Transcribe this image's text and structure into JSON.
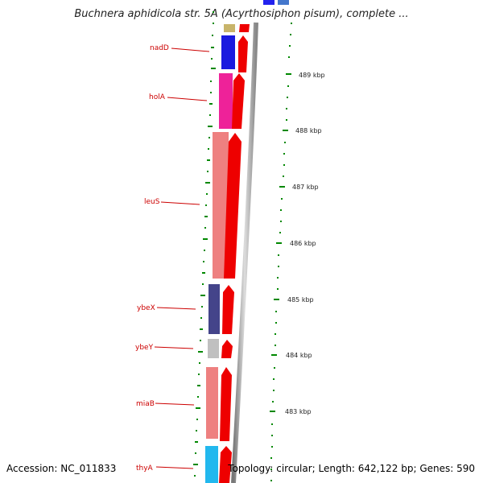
{
  "title": "Buchnera aphidicola str. 5A (Acyrthosiphon pisum), complete ...",
  "accession": "Accession: NC_011833",
  "footer": "Topology: circular; Length: 642,122 bp; Genes: 590",
  "genes": [
    {
      "name": "nadD",
      "color": "#1a1adf"
    },
    {
      "name": "holA",
      "color": "#ee2299"
    },
    {
      "name": "leuS",
      "color": "#ee8080"
    },
    {
      "name": "ybeX",
      "color": "#44448a"
    },
    {
      "name": "ybeY",
      "color": "#c0c0c0"
    },
    {
      "name": "miaB",
      "color": "#ee8080"
    },
    {
      "name": "thyA",
      "color": "#22b8ee"
    }
  ],
  "kbp_labels": [
    "489 kbp",
    "488 kbp",
    "487 kbp",
    "486 kbp",
    "485 kbp",
    "484 kbp",
    "483 kbp"
  ],
  "colors": {
    "strand": "#ee0000",
    "tick": "#008800",
    "label": "#cc0000"
  }
}
